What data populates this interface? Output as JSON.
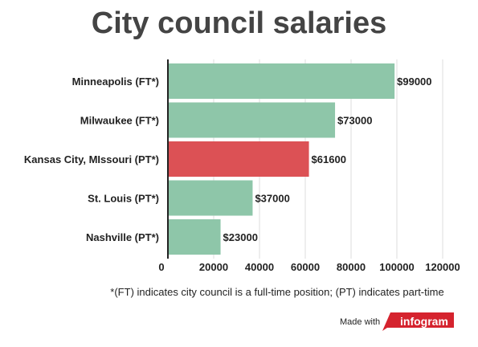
{
  "title": "City council salaries",
  "footnote": "*(FT) indicates city council is a full-time position; (PT) indicates part-time",
  "made_with": "Made with",
  "logo_text": "infogram",
  "colors": {
    "bar": "#8ec6a9",
    "highlight": "#dc5155",
    "axis": "#222222",
    "grid": "#dddddd",
    "logo": "#d5232e"
  },
  "chart_data": {
    "type": "bar",
    "orientation": "horizontal",
    "title": "City council salaries",
    "categories": [
      "Minneapolis (FT*)",
      "Milwaukee (FT*)",
      "Kansas City, MIssouri (PT*)",
      "St. Louis (PT*)",
      "Nashville (PT*)"
    ],
    "values": [
      99000,
      73000,
      61600,
      37000,
      23000
    ],
    "data_labels": [
      "$99000",
      "$73000",
      "$61600",
      "$37000",
      "$23000"
    ],
    "highlight": [
      false,
      false,
      true,
      false,
      false
    ],
    "xticks": [
      0,
      20000,
      40000,
      60000,
      80000,
      100000,
      120000
    ],
    "xlim": [
      0,
      120000
    ],
    "grid": true
  }
}
